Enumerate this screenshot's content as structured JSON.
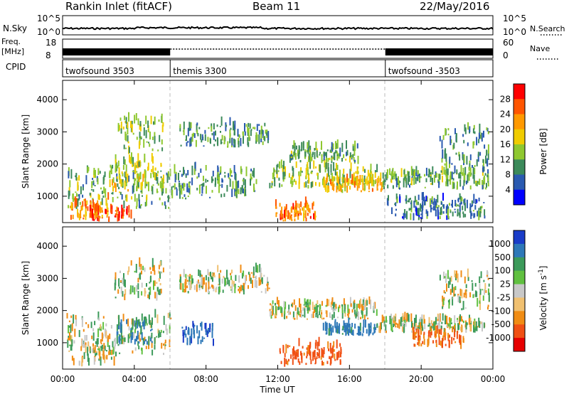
{
  "header": {
    "site": "Rankin Inlet (fitACF)",
    "beam": "Beam 11",
    "date": "22/May/2016"
  },
  "side_labels": {
    "nsky": "N.Sky",
    "freq": "Freq.",
    "freq_unit": "[MHz]",
    "cpid": "CPID",
    "nsearch": "N.Search",
    "nave": "Nave"
  },
  "noise_axis_left": [
    "10^5",
    "10^0"
  ],
  "noise_axis_right": [
    "10^5",
    "10^0"
  ],
  "freq_axis_left": [
    "18",
    "8"
  ],
  "nave_axis_right": [
    "60",
    "0"
  ],
  "cpid_segments": [
    {
      "label": "twofsound 3503",
      "start": 0,
      "end": 6
    },
    {
      "label": "themis 3300",
      "start": 6,
      "end": 18
    },
    {
      "label": "twofsound -3503",
      "start": 18,
      "end": 24
    }
  ],
  "chart_data": [
    {
      "type": "heatmap",
      "name": "power",
      "xlabel": "Time UT",
      "ylabel": "Slant Range [km]",
      "xlim": [
        0,
        24
      ],
      "ylim": [
        180,
        4600
      ],
      "yticks": [
        1000,
        2000,
        3000,
        4000
      ],
      "colorbar": {
        "label": "Power [dB]",
        "ticks": [
          "28",
          "24",
          "20",
          "16",
          "12",
          "8",
          "4"
        ],
        "colors": [
          "#ff0000",
          "#ff5500",
          "#ff9900",
          "#f0cc00",
          "#8fc830",
          "#3c8a5a",
          "#2a5ab0",
          "#0000ff"
        ]
      },
      "regions": [
        {
          "t": [
            0.2,
            6.0
          ],
          "r": [
            600,
            1800
          ],
          "v": 12
        },
        {
          "t": [
            0.4,
            2.6
          ],
          "r": [
            250,
            900
          ],
          "v": 22
        },
        {
          "t": [
            1.5,
            3.8
          ],
          "r": [
            200,
            550
          ],
          "v": 28
        },
        {
          "t": [
            2.6,
            5.6
          ],
          "r": [
            1100,
            2100
          ],
          "v": 16
        },
        {
          "t": [
            3.0,
            5.6
          ],
          "r": [
            2300,
            3400
          ],
          "v": 14
        },
        {
          "t": [
            6.0,
            10.8
          ],
          "r": [
            900,
            1800
          ],
          "v": 10
        },
        {
          "t": [
            6.5,
            11.5
          ],
          "r": [
            2500,
            3200
          ],
          "v": 10
        },
        {
          "t": [
            11.5,
            17.5
          ],
          "r": [
            1200,
            1900
          ],
          "v": 14
        },
        {
          "t": [
            11.8,
            14.2
          ],
          "r": [
            200,
            700
          ],
          "v": 24
        },
        {
          "t": [
            12.5,
            16.5
          ],
          "r": [
            2000,
            2500
          ],
          "v": 12
        },
        {
          "t": [
            14.5,
            17.8
          ],
          "r": [
            1100,
            1500
          ],
          "v": 20
        },
        {
          "t": [
            17.8,
            23.8
          ],
          "r": [
            1200,
            1700
          ],
          "v": 12
        },
        {
          "t": [
            21.0,
            23.8
          ],
          "r": [
            1700,
            3100
          ],
          "v": 10
        },
        {
          "t": [
            18.0,
            23.5
          ],
          "r": [
            250,
            900
          ],
          "v": 8
        }
      ]
    },
    {
      "type": "heatmap",
      "name": "velocity",
      "xlabel": "Time UT",
      "ylabel": "Slant Range [km]",
      "xlim": [
        0,
        24
      ],
      "ylim": [
        180,
        4600
      ],
      "yticks": [
        1000,
        2000,
        3000,
        4000
      ],
      "xticks": [
        "00:00",
        "04:00",
        "08:00",
        "12:00",
        "16:00",
        "20:00",
        "00:00"
      ],
      "colorbar": {
        "label": "Velocity [m s",
        "label_sup": "-1",
        "label_end": "]",
        "ticks": [
          "1000",
          "500",
          "100",
          "25",
          "-25",
          "-100",
          "-500",
          "-1000"
        ],
        "colors": [
          "#1a3cc8",
          "#2e78b8",
          "#3c9a5a",
          "#60c040",
          "#c8c8c8",
          "#f0c070",
          "#f08c14",
          "#f05014",
          "#e60000"
        ]
      },
      "regions": [
        {
          "t": [
            0.2,
            6.0
          ],
          "r": [
            600,
            1800
          ],
          "v": 0
        },
        {
          "t": [
            0.4,
            3.0
          ],
          "r": [
            250,
            900
          ],
          "v": 10
        },
        {
          "t": [
            2.8,
            5.6
          ],
          "r": [
            2300,
            3400
          ],
          "v": 0
        },
        {
          "t": [
            3.0,
            5.0
          ],
          "r": [
            900,
            1600
          ],
          "v": 300
        },
        {
          "t": [
            6.6,
            8.4
          ],
          "r": [
            900,
            1500
          ],
          "v": 700
        },
        {
          "t": [
            6.5,
            11.5
          ],
          "r": [
            2500,
            3200
          ],
          "v": 0
        },
        {
          "t": [
            11.5,
            17.5
          ],
          "r": [
            1700,
            2200
          ],
          "v": 0
        },
        {
          "t": [
            12.0,
            15.5
          ],
          "r": [
            250,
            900
          ],
          "v": -400
        },
        {
          "t": [
            14.5,
            17.5
          ],
          "r": [
            1200,
            1500
          ],
          "v": 400
        },
        {
          "t": [
            17.5,
            23.5
          ],
          "r": [
            1300,
            1700
          ],
          "v": 0
        },
        {
          "t": [
            19.5,
            22.5
          ],
          "r": [
            800,
            1300
          ],
          "v": -300
        },
        {
          "t": [
            21.0,
            23.8
          ],
          "r": [
            2000,
            3100
          ],
          "v": 0
        }
      ]
    }
  ]
}
